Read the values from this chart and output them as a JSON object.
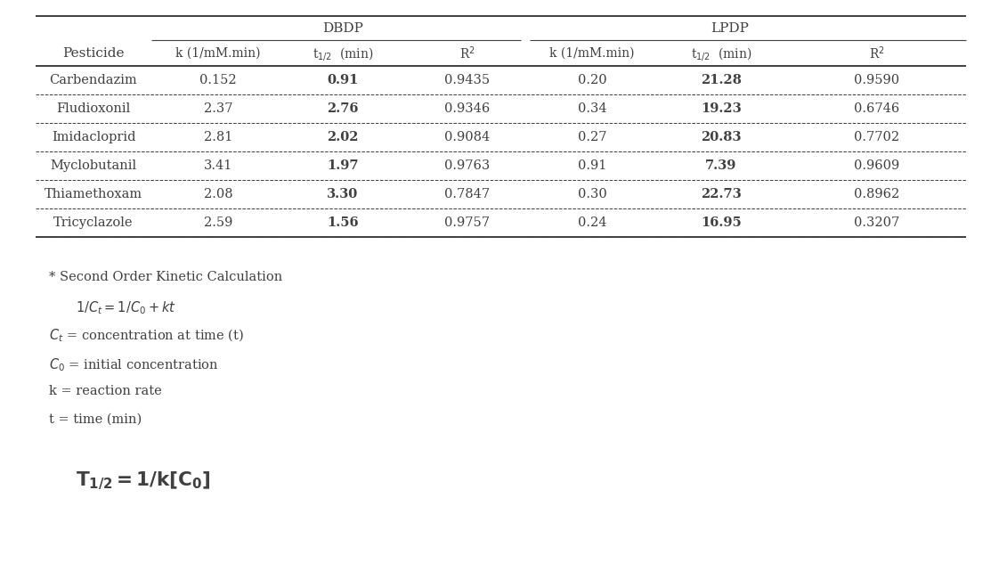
{
  "pesticides": [
    "Carbendazim",
    "Fludioxonil",
    "Imidacloprid",
    "Myclobutanil",
    "Thiamethoxam",
    "Tricyclazole"
  ],
  "dbdp": {
    "k": [
      "0.152",
      "2.37",
      "2.81",
      "3.41",
      "2.08",
      "2.59"
    ],
    "t_half": [
      "0.91",
      "2.76",
      "2.02",
      "1.97",
      "3.30",
      "1.56"
    ],
    "r2": [
      "0.9435",
      "0.9346",
      "0.9084",
      "0.9763",
      "0.7847",
      "0.9757"
    ]
  },
  "lpdp": {
    "k": [
      "0.20",
      "0.34",
      "0.27",
      "0.91",
      "0.30",
      "0.24"
    ],
    "t_half": [
      "21.28",
      "19.23",
      "20.83",
      "7.39",
      "22.73",
      "16.95"
    ],
    "r2": [
      "0.9590",
      "0.6746",
      "0.7702",
      "0.9609",
      "0.8962",
      "0.3207"
    ]
  },
  "bg_color": "#ffffff",
  "text_color": "#404040",
  "line_color": "#404040",
  "font_size": 10.5,
  "header_font_size": 11
}
